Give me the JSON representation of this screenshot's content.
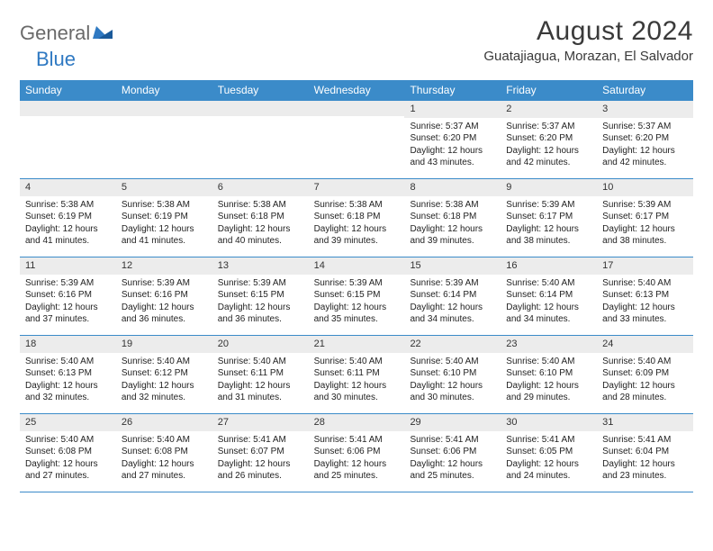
{
  "logo": {
    "text1": "General",
    "text2": "Blue"
  },
  "title": "August 2024",
  "location": "Guatajiagua, Morazan, El Salvador",
  "colors": {
    "headerBg": "#3b8bc9",
    "headerText": "#ffffff",
    "dateBg": "#ececec",
    "borderColor": "#3b8bc9",
    "bodyText": "#222222",
    "titleText": "#3a3a3a",
    "logoGray": "#6a6a6a",
    "logoBlue": "#2f79c2"
  },
  "dayNames": [
    "Sunday",
    "Monday",
    "Tuesday",
    "Wednesday",
    "Thursday",
    "Friday",
    "Saturday"
  ],
  "weeks": [
    [
      null,
      null,
      null,
      null,
      {
        "d": "1",
        "sr": "5:37 AM",
        "ss": "6:20 PM",
        "dl": "12 hours and 43 minutes."
      },
      {
        "d": "2",
        "sr": "5:37 AM",
        "ss": "6:20 PM",
        "dl": "12 hours and 42 minutes."
      },
      {
        "d": "3",
        "sr": "5:37 AM",
        "ss": "6:20 PM",
        "dl": "12 hours and 42 minutes."
      }
    ],
    [
      {
        "d": "4",
        "sr": "5:38 AM",
        "ss": "6:19 PM",
        "dl": "12 hours and 41 minutes."
      },
      {
        "d": "5",
        "sr": "5:38 AM",
        "ss": "6:19 PM",
        "dl": "12 hours and 41 minutes."
      },
      {
        "d": "6",
        "sr": "5:38 AM",
        "ss": "6:18 PM",
        "dl": "12 hours and 40 minutes."
      },
      {
        "d": "7",
        "sr": "5:38 AM",
        "ss": "6:18 PM",
        "dl": "12 hours and 39 minutes."
      },
      {
        "d": "8",
        "sr": "5:38 AM",
        "ss": "6:18 PM",
        "dl": "12 hours and 39 minutes."
      },
      {
        "d": "9",
        "sr": "5:39 AM",
        "ss": "6:17 PM",
        "dl": "12 hours and 38 minutes."
      },
      {
        "d": "10",
        "sr": "5:39 AM",
        "ss": "6:17 PM",
        "dl": "12 hours and 38 minutes."
      }
    ],
    [
      {
        "d": "11",
        "sr": "5:39 AM",
        "ss": "6:16 PM",
        "dl": "12 hours and 37 minutes."
      },
      {
        "d": "12",
        "sr": "5:39 AM",
        "ss": "6:16 PM",
        "dl": "12 hours and 36 minutes."
      },
      {
        "d": "13",
        "sr": "5:39 AM",
        "ss": "6:15 PM",
        "dl": "12 hours and 36 minutes."
      },
      {
        "d": "14",
        "sr": "5:39 AM",
        "ss": "6:15 PM",
        "dl": "12 hours and 35 minutes."
      },
      {
        "d": "15",
        "sr": "5:39 AM",
        "ss": "6:14 PM",
        "dl": "12 hours and 34 minutes."
      },
      {
        "d": "16",
        "sr": "5:40 AM",
        "ss": "6:14 PM",
        "dl": "12 hours and 34 minutes."
      },
      {
        "d": "17",
        "sr": "5:40 AM",
        "ss": "6:13 PM",
        "dl": "12 hours and 33 minutes."
      }
    ],
    [
      {
        "d": "18",
        "sr": "5:40 AM",
        "ss": "6:13 PM",
        "dl": "12 hours and 32 minutes."
      },
      {
        "d": "19",
        "sr": "5:40 AM",
        "ss": "6:12 PM",
        "dl": "12 hours and 32 minutes."
      },
      {
        "d": "20",
        "sr": "5:40 AM",
        "ss": "6:11 PM",
        "dl": "12 hours and 31 minutes."
      },
      {
        "d": "21",
        "sr": "5:40 AM",
        "ss": "6:11 PM",
        "dl": "12 hours and 30 minutes."
      },
      {
        "d": "22",
        "sr": "5:40 AM",
        "ss": "6:10 PM",
        "dl": "12 hours and 30 minutes."
      },
      {
        "d": "23",
        "sr": "5:40 AM",
        "ss": "6:10 PM",
        "dl": "12 hours and 29 minutes."
      },
      {
        "d": "24",
        "sr": "5:40 AM",
        "ss": "6:09 PM",
        "dl": "12 hours and 28 minutes."
      }
    ],
    [
      {
        "d": "25",
        "sr": "5:40 AM",
        "ss": "6:08 PM",
        "dl": "12 hours and 27 minutes."
      },
      {
        "d": "26",
        "sr": "5:40 AM",
        "ss": "6:08 PM",
        "dl": "12 hours and 27 minutes."
      },
      {
        "d": "27",
        "sr": "5:41 AM",
        "ss": "6:07 PM",
        "dl": "12 hours and 26 minutes."
      },
      {
        "d": "28",
        "sr": "5:41 AM",
        "ss": "6:06 PM",
        "dl": "12 hours and 25 minutes."
      },
      {
        "d": "29",
        "sr": "5:41 AM",
        "ss": "6:06 PM",
        "dl": "12 hours and 25 minutes."
      },
      {
        "d": "30",
        "sr": "5:41 AM",
        "ss": "6:05 PM",
        "dl": "12 hours and 24 minutes."
      },
      {
        "d": "31",
        "sr": "5:41 AM",
        "ss": "6:04 PM",
        "dl": "12 hours and 23 minutes."
      }
    ]
  ],
  "labels": {
    "sunrise": "Sunrise:",
    "sunset": "Sunset:",
    "daylight": "Daylight:"
  }
}
